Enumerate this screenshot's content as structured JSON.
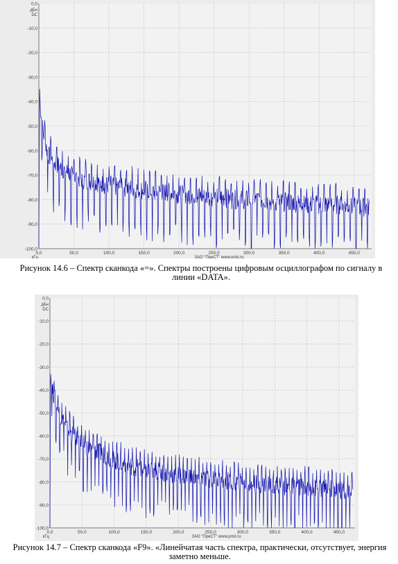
{
  "figures": [
    {
      "caption": "Рисунок 14.6 – Спектр сканкода  «=». Спектры построены цифровым осциллографом по сигналу в линии «DATA».",
      "footer": "ЗАО \"ПриСТ\"   www.prist.ru",
      "chart_data": {
        "type": "line",
        "title": "",
        "xlabel": "кГц",
        "ylabel_unit": "дБн",
        "ylabel_ref": "DC",
        "xlim": [
          0,
          475
        ],
        "ylim": [
          -100,
          0
        ],
        "xticks": [
          "0,0",
          "50,0",
          "100,0",
          "150,0",
          "200,0",
          "250,0",
          "300,0",
          "350,0",
          "400,0",
          "450,0"
        ],
        "yticks": [
          "0,0",
          "-10,0",
          "-20,0",
          "-30,0",
          "-40,0",
          "-50,0",
          "-60,0",
          "-70,0",
          "-80,0",
          "-90,0",
          "-100,0"
        ],
        "grid": true,
        "series_color": "#1010b0",
        "series": [
          {
            "x": [
              0,
              1,
              2,
              4,
              6,
              8,
              10,
              12,
              14,
              17,
              20,
              23,
              27,
              31,
              36,
              42,
              48,
              55,
              62,
              70,
              78,
              86,
              95,
              104,
              113,
              123,
              133,
              143,
              154,
              165,
              176,
              188,
              200,
              212,
              224,
              237,
              250,
              263,
              276,
              290,
              304,
              318,
              332,
              347,
              362,
              377,
              392,
              408,
              424,
              440,
              456,
              470
            ],
            "values": [
              -100,
              -33,
              -42,
              -47,
              -52,
              -55,
              -58,
              -60,
              -62,
              -63,
              -64,
              -65,
              -66,
              -67,
              -68,
              -69,
              -70,
              -71,
              -72,
              -72,
              -73,
              -73,
              -74,
              -74,
              -75,
              -75,
              -75,
              -76,
              -76,
              -77,
              -77,
              -77,
              -78,
              -78,
              -78,
              -79,
              -79,
              -79,
              -80,
              -80,
              -80,
              -80,
              -81,
              -81,
              -81,
              -82,
              -82,
              -82,
              -82,
              -83,
              -83,
              -83
            ]
          }
        ]
      }
    },
    {
      "caption": "Рисунок 14.7 – Спектр сканкода  «F9». «Линейчатая часть спектра, практически, отсутствует, энергия заметно меньше.",
      "footer": "ЗАО \"ПриСТ\"   www.prist.ru",
      "chart_data": {
        "type": "line",
        "title": "",
        "xlabel": "кГц",
        "ylabel_unit": "дБн",
        "ylabel_ref": "DC",
        "xlim": [
          0,
          475
        ],
        "ylim": [
          -100,
          0
        ],
        "xticks": [
          "0,0",
          "50,0",
          "100,0",
          "150,0",
          "200,0",
          "250,0",
          "300,0",
          "350,0",
          "400,0",
          "450,0"
        ],
        "yticks": [
          "0,0",
          "-10,0",
          "-20,0",
          "-30,0",
          "-40,0",
          "-50,0",
          "-60,0",
          "-70,0",
          "-80,0",
          "-90,0",
          "-100,0"
        ],
        "grid": true,
        "series_color": "#1010b0",
        "series": [
          {
            "x": [
              0,
              1,
              2,
              4,
              6,
              8,
              10,
              12,
              15,
              18,
              22,
              26,
              31,
              37,
              43,
              50,
              58,
              66,
              75,
              84,
              94,
              104,
              115,
              126,
              138,
              150,
              163,
              176,
              190,
              204,
              218,
              233,
              248,
              264,
              280,
              296,
              313,
              330,
              347,
              365,
              383,
              401,
              420,
              440,
              460,
              470
            ],
            "values": [
              -100,
              -27,
              -38,
              -40,
              -42,
              -44,
              -46,
              -48,
              -50,
              -52,
              -54,
              -56,
              -58,
              -60,
              -62,
              -63,
              -65,
              -66,
              -67,
              -68,
              -70,
              -71,
              -72,
              -73,
              -74,
              -75,
              -75,
              -76,
              -77,
              -77,
              -78,
              -78,
              -79,
              -79,
              -80,
              -80,
              -81,
              -81,
              -81,
              -82,
              -82,
              -82,
              -83,
              -83,
              -84,
              -84
            ]
          }
        ]
      }
    }
  ]
}
